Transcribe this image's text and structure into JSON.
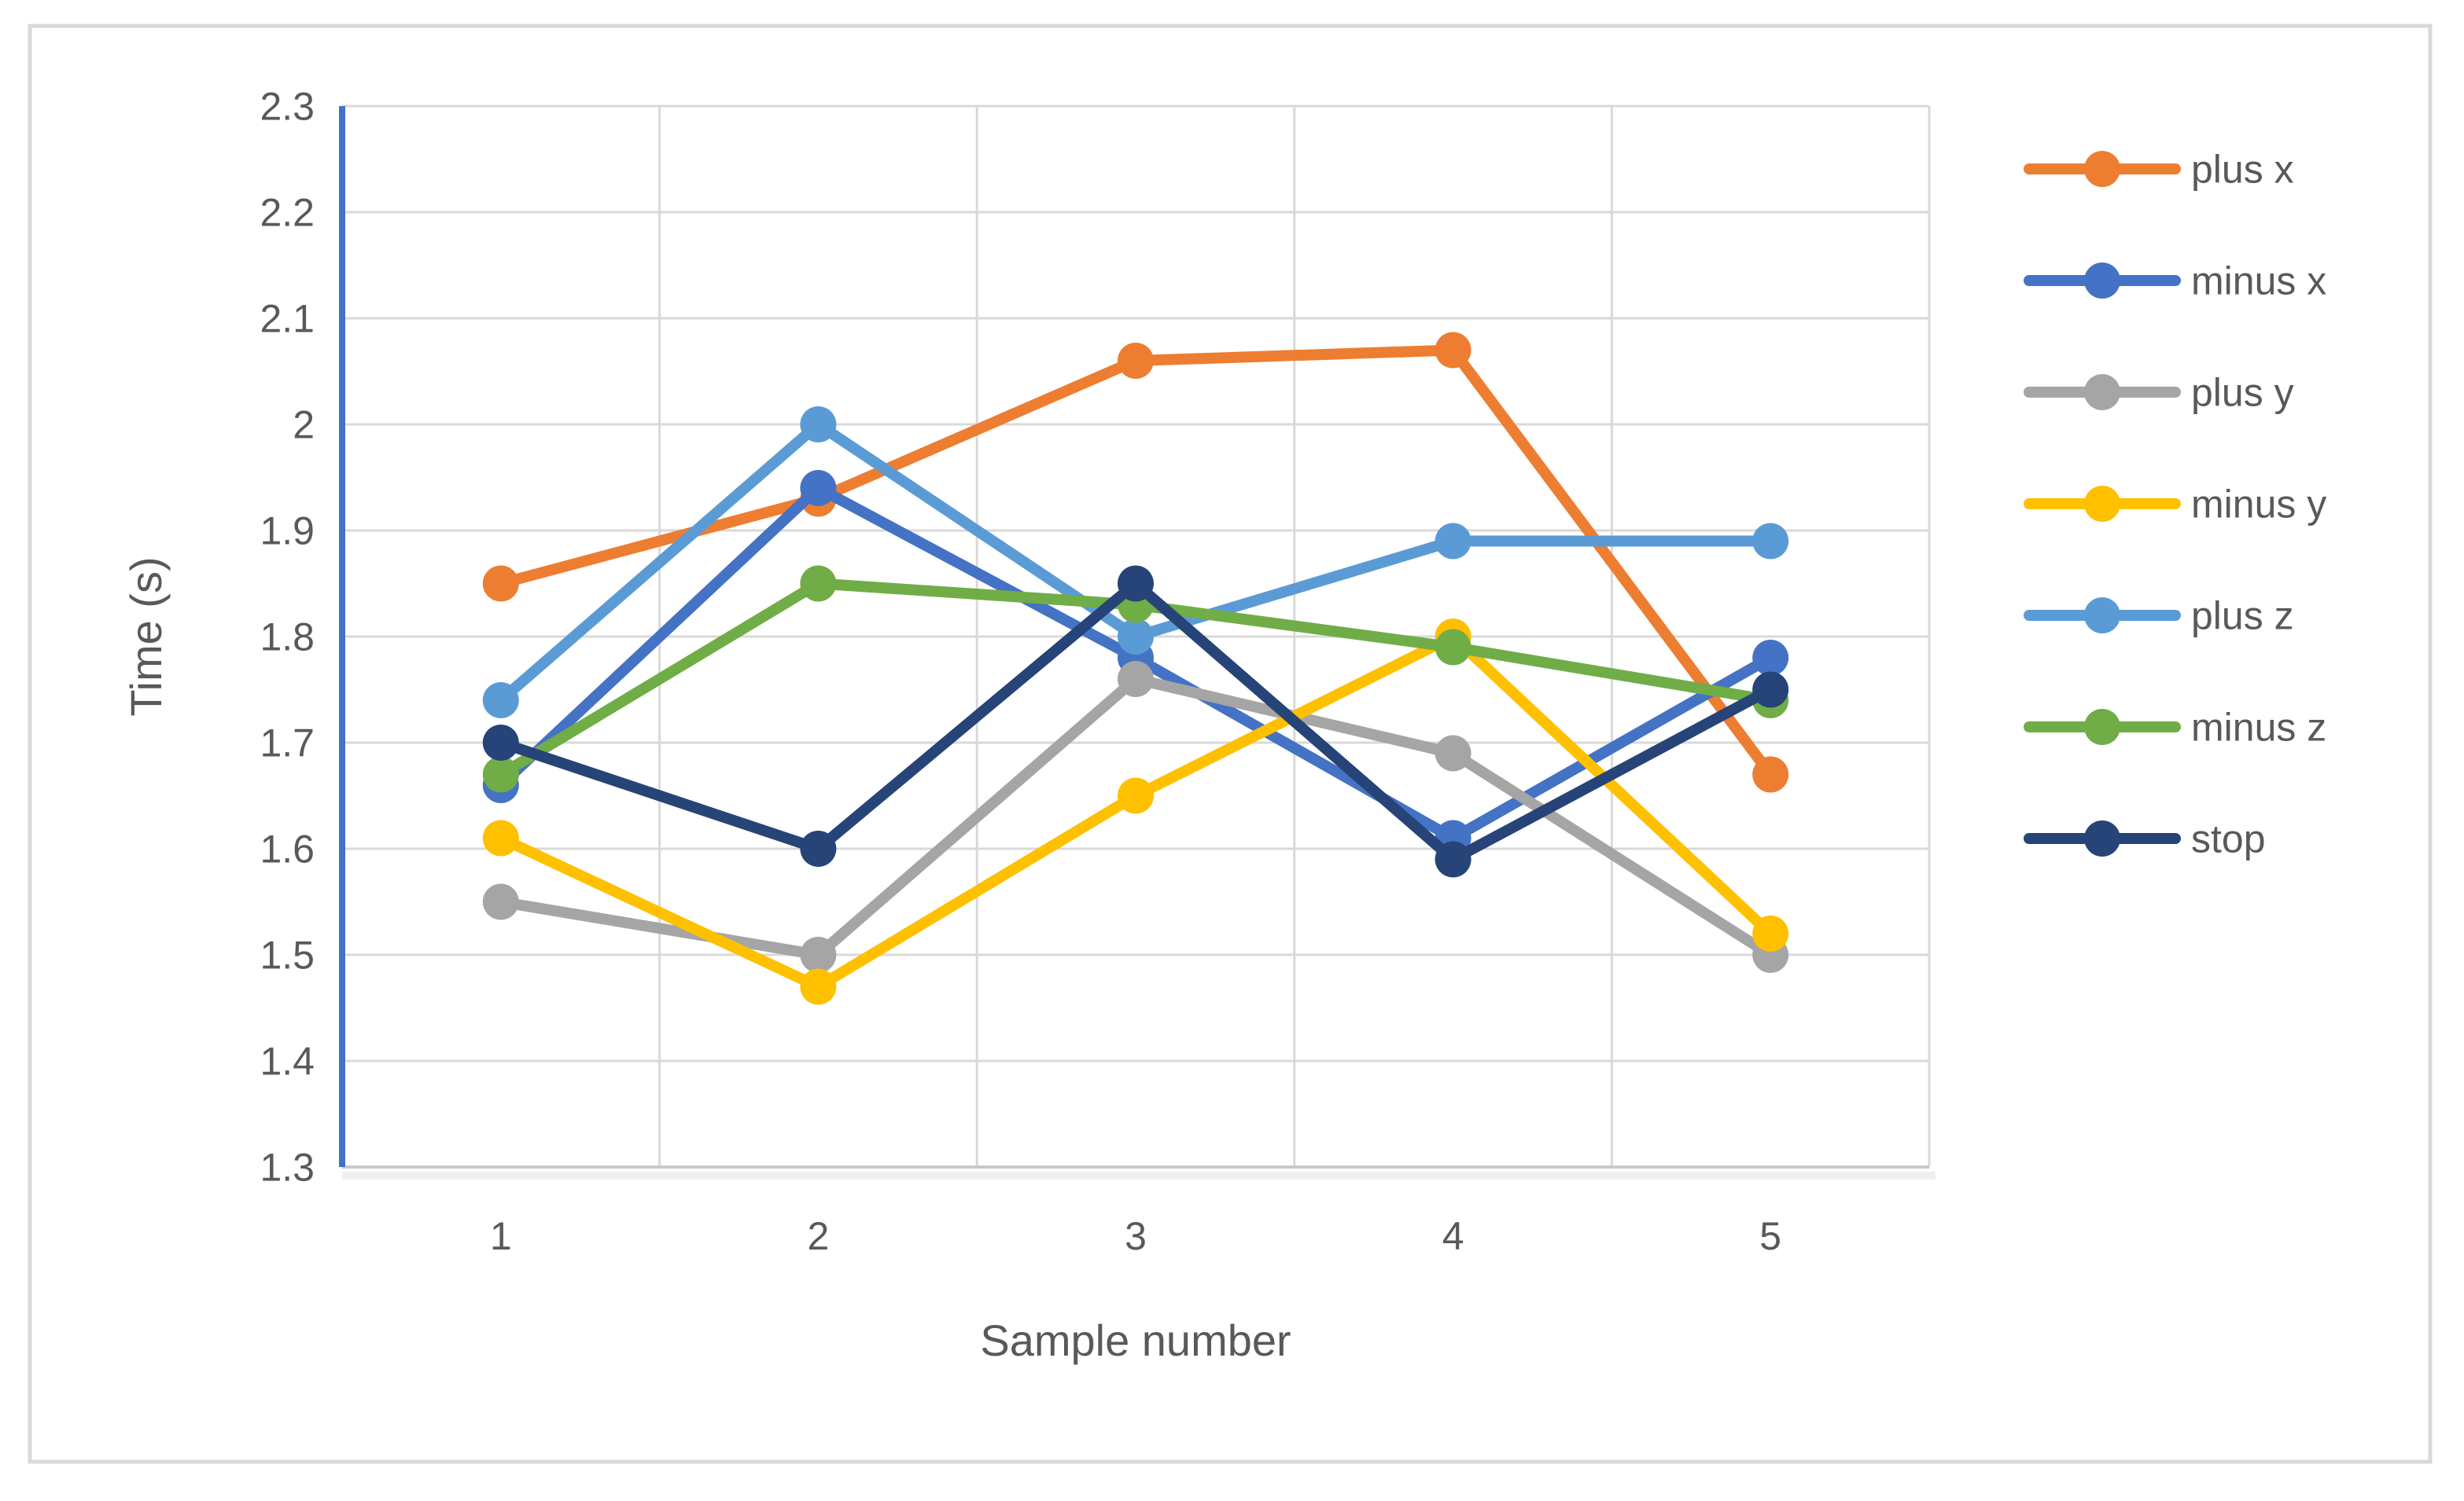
{
  "page": {
    "background": "#FFFFFF",
    "border_color": "#D9D9D9"
  },
  "chart_data": {
    "type": "line",
    "title": "",
    "xlabel": "Sample number",
    "ylabel": "Time (s)",
    "categories": [
      "1",
      "2",
      "3",
      "4",
      "5"
    ],
    "series": [
      {
        "name": "plus x",
        "color": "#ED7D31",
        "values": [
          1.85,
          1.93,
          2.06,
          2.07,
          1.67
        ]
      },
      {
        "name": "minus x",
        "color": "#4472C4",
        "values": [
          1.66,
          1.94,
          1.78,
          1.61,
          1.78
        ]
      },
      {
        "name": "plus y",
        "color": "#A5A5A5",
        "values": [
          1.55,
          1.5,
          1.76,
          1.69,
          1.5
        ]
      },
      {
        "name": "minus y",
        "color": "#FFC000",
        "values": [
          1.61,
          1.47,
          1.65,
          1.8,
          1.52
        ]
      },
      {
        "name": "plus z",
        "color": "#5B9BD5",
        "values": [
          1.74,
          2.0,
          1.8,
          1.89,
          1.89
        ]
      },
      {
        "name": "minus z",
        "color": "#70AD47",
        "values": [
          1.67,
          1.85,
          1.83,
          1.79,
          1.74
        ]
      },
      {
        "name": "stop",
        "color": "#264478",
        "values": [
          1.7,
          1.6,
          1.85,
          1.59,
          1.75
        ]
      }
    ],
    "ylim": [
      1.3,
      2.3
    ],
    "yticks": [
      "1.3",
      "1.4",
      "1.5",
      "1.6",
      "1.7",
      "1.8",
      "1.9",
      "2",
      "2.1",
      "2.2",
      "2.3"
    ],
    "grid": true,
    "legend_position": "right",
    "marker": "circle",
    "axis_line_color": "#4472C4",
    "gridline_color": "#D9D9D9",
    "text_color": "#595959"
  }
}
